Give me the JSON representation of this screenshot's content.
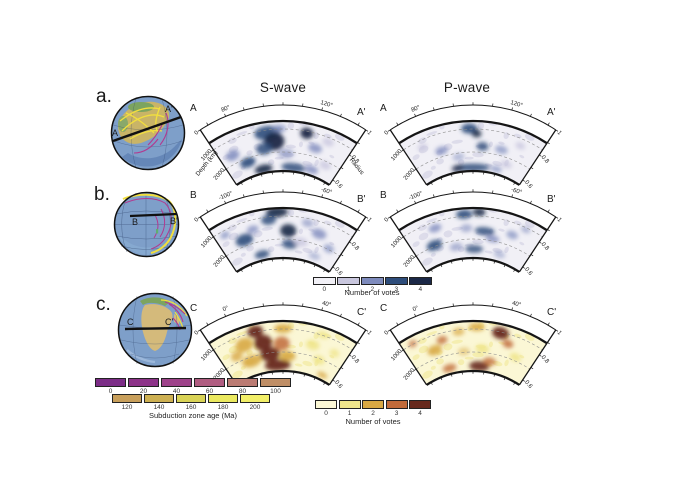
{
  "header": {
    "columns": [
      "S-wave",
      "P-wave"
    ]
  },
  "rows": [
    {
      "panel": "a.",
      "start": "A",
      "end": "A'",
      "angle_ticks": [
        "80°",
        "120°"
      ],
      "depth_ticks": [
        "0",
        "1000",
        "2000"
      ],
      "radius_ticks": [
        "1",
        "0.8",
        "0.6"
      ],
      "depth_axis": "Depth (km)",
      "radius_axis": "Radius",
      "palette": "blue"
    },
    {
      "panel": "b.",
      "start": "B",
      "end": "B'",
      "angle_ticks": [
        "-100°",
        "-60°"
      ],
      "depth_ticks": [
        "0",
        "1000",
        "2000"
      ],
      "radius_ticks": [
        "1",
        "0.8",
        "0.6"
      ],
      "depth_axis": "",
      "radius_axis": "",
      "palette": "blue"
    },
    {
      "panel": "c.",
      "start": "C",
      "end": "C'",
      "angle_ticks": [
        "0°",
        "40°"
      ],
      "depth_ticks": [
        "0",
        "1000",
        "2000"
      ],
      "radius_ticks": [
        "1",
        "0.8",
        "0.6"
      ],
      "depth_axis": "",
      "radius_axis": "",
      "palette": "warm"
    }
  ],
  "palettes": {
    "blue": [
      "#f1f0f6",
      "#c9c7de",
      "#7e8bbd",
      "#2e4d7b",
      "#1b2847"
    ],
    "warm": [
      "#fbf7d5",
      "#f0e68c",
      "#d8a844",
      "#c06a3a",
      "#67291d"
    ]
  },
  "colorbars": {
    "votes_blue": {
      "ticks": [
        "0",
        "1",
        "2",
        "3",
        "4"
      ],
      "label": "Number of votes",
      "colors": [
        "#f1f0f6",
        "#c9c7de",
        "#7e8bbd",
        "#2e4d7b",
        "#1b2847"
      ]
    },
    "votes_warm": {
      "ticks": [
        "0",
        "1",
        "2",
        "3",
        "4"
      ],
      "label": "Number of votes",
      "colors": [
        "#fbf7d5",
        "#f0e68c",
        "#d8a844",
        "#c06a3a",
        "#67291d"
      ]
    },
    "age": {
      "label": "Subduction zone age (Ma)",
      "row1_ticks": [
        "0",
        "20",
        "40",
        "60",
        "80",
        "100"
      ],
      "row2_ticks": [
        "120",
        "140",
        "160",
        "180",
        "200"
      ],
      "row1_colors": [
        "#7c2d87",
        "#8d3389",
        "#9e428a",
        "#b05d81",
        "#bb7b73",
        "#bf8e66"
      ],
      "row2_colors": [
        "#c89f5b",
        "#cdb052",
        "#d9d356",
        "#ebe95f",
        "#f2ef68"
      ]
    }
  },
  "wedges": {
    "blob_fields": [
      "angle_frac",
      "radius_frac",
      "width",
      "height",
      "color_index",
      "opacity"
    ],
    "a_s": [
      [
        -0.22,
        0.78,
        26,
        14,
        3,
        0.9
      ],
      [
        -0.13,
        0.6,
        20,
        18,
        4,
        0.95
      ],
      [
        -0.3,
        0.48,
        16,
        12,
        3,
        0.85
      ],
      [
        0.33,
        0.8,
        13,
        11,
        4,
        0.95
      ],
      [
        0.5,
        0.55,
        14,
        9,
        2,
        0.8
      ],
      [
        -0.8,
        0.55,
        14,
        10,
        2,
        0.85
      ],
      [
        -0.62,
        0.3,
        16,
        10,
        3,
        0.9
      ],
      [
        -0.38,
        0.08,
        18,
        9,
        4,
        0.9
      ],
      [
        0.2,
        0.08,
        24,
        9,
        3,
        0.85
      ],
      [
        0.55,
        0.12,
        14,
        8,
        2,
        0.8
      ],
      [
        0.05,
        0.35,
        16,
        10,
        2,
        0.6
      ],
      [
        0.75,
        0.3,
        12,
        8,
        1,
        0.8
      ],
      [
        0.65,
        0.75,
        12,
        8,
        1,
        0.8
      ],
      [
        -0.05,
        0.85,
        14,
        8,
        2,
        0.7
      ]
    ],
    "a_p": [
      [
        -0.05,
        0.85,
        16,
        10,
        3,
        0.9
      ],
      [
        0.05,
        0.75,
        10,
        8,
        4,
        0.85
      ],
      [
        -0.5,
        0.5,
        13,
        8,
        2,
        0.8
      ],
      [
        0.15,
        0.5,
        12,
        9,
        3,
        0.8
      ],
      [
        0.45,
        0.5,
        13,
        8,
        2,
        0.7
      ],
      [
        0.0,
        0.07,
        34,
        8,
        3,
        0.85
      ],
      [
        -0.3,
        0.08,
        12,
        7,
        4,
        0.8
      ],
      [
        0.45,
        0.1,
        12,
        6,
        2,
        0.7
      ],
      [
        -0.75,
        0.7,
        10,
        7,
        1,
        0.8
      ],
      [
        0.7,
        0.7,
        10,
        7,
        1,
        0.8
      ],
      [
        0.6,
        0.25,
        12,
        7,
        1,
        0.8
      ],
      [
        -0.25,
        0.3,
        12,
        8,
        2,
        0.5
      ]
    ],
    "b_s": [
      [
        -0.08,
        0.92,
        22,
        10,
        4,
        0.9
      ],
      [
        -0.2,
        0.78,
        15,
        10,
        3,
        0.85
      ],
      [
        0.08,
        0.55,
        16,
        13,
        4,
        0.9
      ],
      [
        -0.62,
        0.5,
        18,
        12,
        3,
        0.9
      ],
      [
        -0.45,
        0.65,
        12,
        8,
        2,
        0.75
      ],
      [
        0.12,
        0.28,
        16,
        9,
        3,
        0.85
      ],
      [
        -0.4,
        0.12,
        15,
        8,
        3,
        0.85
      ],
      [
        0.55,
        0.6,
        15,
        10,
        2,
        0.8
      ],
      [
        0.78,
        0.4,
        11,
        8,
        2,
        0.7
      ],
      [
        0.35,
        0.75,
        12,
        8,
        2,
        0.6
      ],
      [
        0.3,
        0.35,
        14,
        9,
        1,
        0.8
      ],
      [
        -0.85,
        0.75,
        10,
        7,
        2,
        0.7
      ],
      [
        0.6,
        0.15,
        12,
        7,
        2,
        0.5
      ]
    ],
    "b_p": [
      [
        -0.12,
        0.88,
        16,
        9,
        3,
        0.9
      ],
      [
        0.08,
        0.92,
        13,
        8,
        4,
        0.85
      ],
      [
        -0.55,
        0.72,
        13,
        8,
        2,
        0.8
      ],
      [
        -0.65,
        0.4,
        16,
        10,
        3,
        0.9
      ],
      [
        0.18,
        0.55,
        20,
        8,
        3,
        0.85
      ],
      [
        0.32,
        0.42,
        14,
        7,
        2,
        0.8
      ],
      [
        0.02,
        0.18,
        18,
        8,
        3,
        0.8
      ],
      [
        0.6,
        0.6,
        12,
        8,
        2,
        0.7
      ],
      [
        0.75,
        0.8,
        10,
        6,
        2,
        0.6
      ],
      [
        -0.3,
        0.25,
        13,
        8,
        2,
        0.6
      ],
      [
        0.5,
        0.15,
        12,
        7,
        2,
        0.5
      ],
      [
        -0.1,
        0.6,
        12,
        8,
        2,
        0.6
      ]
    ],
    "c_s": [
      [
        -0.38,
        0.85,
        16,
        12,
        4,
        0.95
      ],
      [
        -0.3,
        0.6,
        18,
        16,
        4,
        0.95
      ],
      [
        -0.22,
        0.35,
        20,
        14,
        4,
        0.95
      ],
      [
        -0.1,
        0.12,
        26,
        11,
        4,
        0.95
      ],
      [
        -0.58,
        0.65,
        18,
        14,
        2,
        0.9
      ],
      [
        -0.55,
        0.3,
        20,
        12,
        2,
        0.9
      ],
      [
        -0.02,
        0.55,
        16,
        14,
        3,
        0.85
      ],
      [
        0.0,
        0.85,
        18,
        9,
        2,
        0.9
      ],
      [
        -0.75,
        0.5,
        12,
        10,
        2,
        0.8
      ],
      [
        0.08,
        0.3,
        16,
        10,
        2,
        0.9
      ],
      [
        0.45,
        0.6,
        14,
        10,
        1,
        0.9
      ],
      [
        0.62,
        0.35,
        12,
        9,
        1,
        0.9
      ],
      [
        0.55,
        0.85,
        12,
        7,
        1,
        0.9
      ],
      [
        0.8,
        0.6,
        10,
        8,
        1,
        0.8
      ],
      [
        0.78,
        0.1,
        11,
        6,
        2,
        0.8
      ]
    ],
    "c_p": [
      [
        0.38,
        0.82,
        17,
        12,
        4,
        0.95
      ],
      [
        0.52,
        0.65,
        11,
        8,
        3,
        0.85
      ],
      [
        0.05,
        0.88,
        16,
        8,
        2,
        0.9
      ],
      [
        -0.2,
        0.8,
        12,
        8,
        2,
        0.7
      ],
      [
        -0.6,
        0.55,
        15,
        10,
        2,
        0.9
      ],
      [
        -0.45,
        0.7,
        11,
        8,
        3,
        0.8
      ],
      [
        -0.85,
        0.85,
        9,
        7,
        3,
        0.7
      ],
      [
        0.12,
        0.1,
        20,
        10,
        4,
        0.9
      ],
      [
        0.3,
        0.22,
        13,
        8,
        3,
        0.8
      ],
      [
        -0.45,
        0.12,
        14,
        8,
        3,
        0.8
      ],
      [
        0.7,
        0.45,
        12,
        8,
        1,
        0.9
      ],
      [
        0.15,
        0.45,
        14,
        9,
        1,
        0.9
      ],
      [
        -0.15,
        0.4,
        12,
        8,
        2,
        0.5
      ]
    ]
  }
}
